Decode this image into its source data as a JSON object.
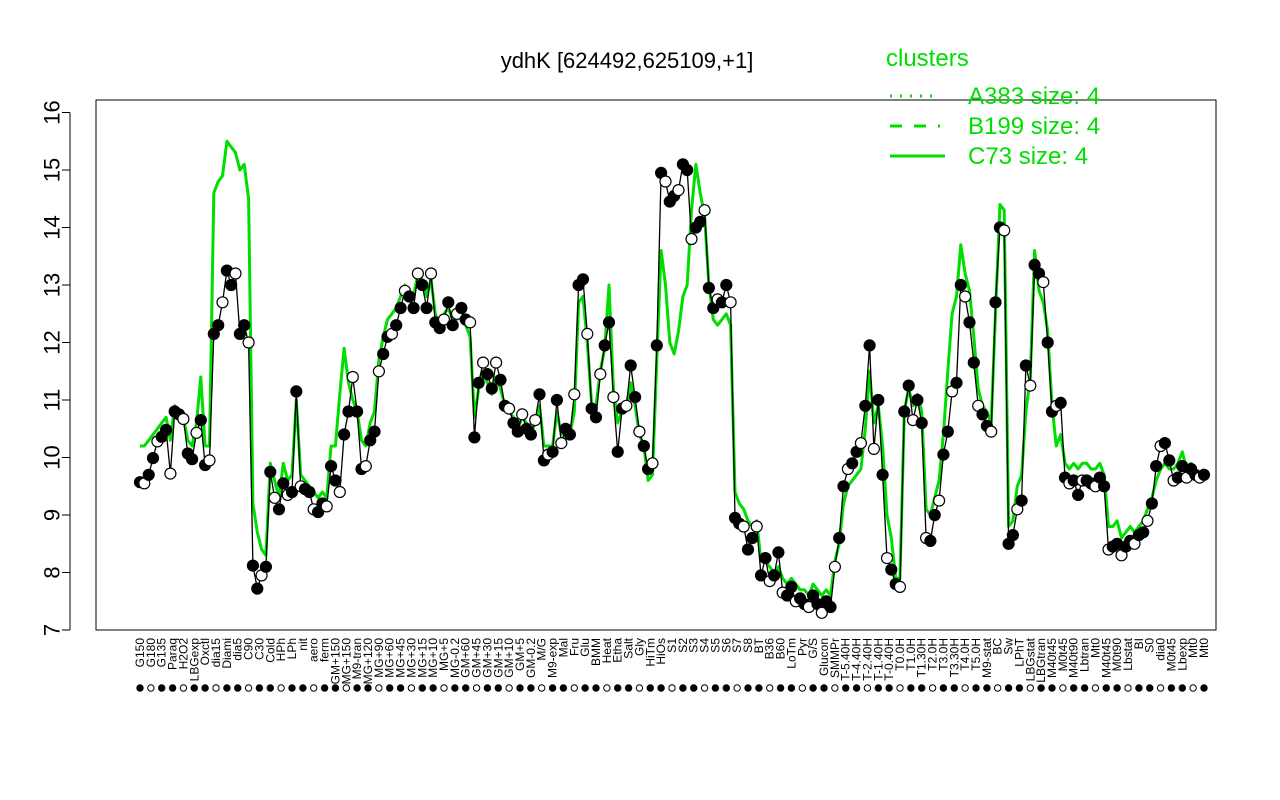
{
  "chart_data": {
    "type": "line",
    "title": "ydhK [624492,625109,+1]",
    "xlabel": "",
    "ylabel": "",
    "ylim": [
      7,
      16
    ],
    "yticks": [
      7,
      8,
      9,
      10,
      11,
      12,
      13,
      14,
      15,
      16
    ],
    "grid": false,
    "legend": {
      "placement": "top-right",
      "title": "clusters",
      "entries": [
        {
          "label": "A383 size: 4",
          "style": "dotted"
        },
        {
          "label": "B199 size: 4",
          "style": "dashed"
        },
        {
          "label": "C73 size: 4",
          "style": "solid"
        }
      ]
    },
    "colors": {
      "cluster": "#00dd00",
      "points": "#000000"
    },
    "x_tick_labels": [
      "G150",
      "G180",
      "G135",
      "Paraq",
      "H2O2",
      "LBGexp",
      "Oxctl",
      "dia15",
      "Diami",
      "dia5",
      "C90",
      "C30",
      "Cold",
      "HPh",
      "LPh",
      "nit",
      "aero",
      "ferm",
      "GM+150",
      "MG+150",
      "M9-tran",
      "MG+120",
      "MG+90",
      "MG+60",
      "MG+45",
      "MG+30",
      "MG+15",
      "MG+10",
      "MG+5",
      "MG-0.2",
      "GM+60",
      "GM+45",
      "GM+30",
      "GM+15",
      "GM+10",
      "GM+5",
      "GM-0.2",
      "M/G",
      "M9-exp",
      "Mal",
      "Fru",
      "Glu",
      "BMM",
      "Heat",
      "Etha",
      "Salt",
      "Gly",
      "HiTm",
      "HiOs",
      "S1",
      "S2",
      "S3",
      "S4",
      "S5",
      "S6",
      "S7",
      "S8",
      "BT",
      "B36",
      "B60",
      "LoTm",
      "Pyr",
      "G/S",
      "Glucon",
      "SMMPr",
      "T-5.40H",
      "T-4.40H",
      "T-2.40H",
      "T-1.40H",
      "T-0.40H",
      "T0.0H",
      "T1.0H",
      "T1.30H",
      "T2.0H",
      "T3.0H",
      "T3.30H",
      "T4.0H",
      "T5.0H",
      "M9-stat",
      "BC",
      "Sw",
      "LPhT",
      "LBGstat",
      "LBGtran",
      "M40t45",
      "M0t45",
      "M40t90",
      "Lbtran",
      "Mt0",
      "M40t45",
      "M0t90",
      "Lbstat",
      "BI",
      "S0",
      "dia0",
      "M0t45",
      "Lbexp",
      "Mt0",
      "Mt0"
    ],
    "series": [
      {
        "values": [
          9.57,
          9.55,
          9.7,
          9.99,
          10.28,
          10.36,
          10.48,
          9.72,
          10.8,
          10.75,
          10.67,
          10.07,
          9.97,
          10.43,
          10.65,
          9.87,
          9.95,
          12.15,
          12.3,
          12.7,
          13.25,
          13.0,
          13.2,
          12.15,
          12.3,
          12.0,
          8.12,
          7.72,
          7.95,
          8.1,
          9.75,
          9.3,
          9.1,
          9.55,
          9.35,
          9.4,
          11.15,
          9.5,
          9.45,
          9.4,
          9.1,
          9.05,
          9.2,
          9.15,
          9.85,
          9.6,
          9.4,
          10.4,
          10.8,
          11.4,
          10.8,
          9.8,
          9.85,
          10.3,
          10.45,
          11.5,
          11.8,
          12.1,
          12.15,
          12.3,
          12.6,
          12.9,
          12.8,
          12.6,
          13.2,
          13.0,
          12.6,
          13.2,
          12.35,
          12.25,
          12.4,
          12.7,
          12.3,
          12.5,
          12.6,
          12.4,
          12.35,
          10.35,
          11.3,
          11.65,
          11.45,
          11.2,
          11.65,
          11.35,
          10.9,
          10.85,
          10.6,
          10.45,
          10.75,
          10.5,
          10.4,
          10.65,
          11.1,
          9.95,
          10.05,
          10.1,
          11.0,
          10.25,
          10.5,
          10.4,
          11.1,
          13.0,
          13.1,
          12.15,
          10.85,
          10.7,
          11.45,
          11.95,
          12.35,
          11.05,
          10.1,
          10.85,
          10.9,
          11.6,
          11.05,
          10.45,
          10.2,
          9.8,
          9.9,
          11.95,
          14.95,
          14.8,
          14.45,
          14.55,
          14.65,
          15.1,
          15.0,
          13.8,
          14.0,
          14.1,
          14.3,
          12.95,
          12.6,
          12.75,
          12.7,
          13.0,
          12.7,
          8.95,
          8.85,
          8.8,
          8.4,
          8.6,
          8.8,
          7.95,
          8.25,
          7.85,
          7.95,
          8.35,
          7.65,
          7.6,
          7.75,
          7.5,
          7.55,
          7.45,
          7.4,
          7.6,
          7.45,
          7.3,
          7.5,
          7.4,
          8.1,
          8.6,
          9.5,
          9.8,
          9.9,
          10.1,
          10.25,
          10.9,
          11.95,
          10.15,
          11.0,
          9.7,
          8.25,
          8.05,
          7.8,
          7.75,
          10.8,
          11.25,
          10.65,
          11.0,
          10.6,
          8.6,
          8.55,
          9.0,
          9.25,
          10.05,
          10.45,
          11.15,
          11.3,
          13.0,
          12.8,
          12.35,
          11.65,
          10.9,
          10.75,
          10.55,
          10.45,
          12.7,
          14.0,
          13.95,
          8.5,
          8.65,
          9.1,
          9.25,
          11.6,
          11.25,
          13.35,
          13.2,
          13.05,
          12.0,
          10.8,
          10.9,
          10.95,
          9.65,
          9.55,
          9.6,
          9.35,
          9.6,
          9.6,
          9.55,
          9.5,
          9.65,
          9.5,
          8.4,
          8.45,
          8.5,
          8.3,
          8.45,
          8.55,
          8.5,
          8.65,
          8.7,
          8.9,
          9.2,
          9.85,
          10.2,
          10.25,
          9.95,
          9.6,
          9.65,
          9.85,
          9.65,
          9.8,
          9.7,
          9.65,
          9.7
        ]
      }
    ],
    "cluster_line": {
      "name": "C73 size: 4",
      "values": [
        10.2,
        10.2,
        10.3,
        10.4,
        10.5,
        10.6,
        10.7,
        10.3,
        10.9,
        10.8,
        10.7,
        10.3,
        10.2,
        10.6,
        11.4,
        10.2,
        10.2,
        14.6,
        14.8,
        14.9,
        15.5,
        15.4,
        15.3,
        15.0,
        15.1,
        14.5,
        9.2,
        8.7,
        8.4,
        8.3,
        9.9,
        9.6,
        9.3,
        9.9,
        9.6,
        9.7,
        11.0,
        9.7,
        9.6,
        9.5,
        9.4,
        9.3,
        9.4,
        9.3,
        10.2,
        10.2,
        11.1,
        11.9,
        11.3,
        11.0,
        10.8,
        10.3,
        10.2,
        10.6,
        10.8,
        11.7,
        12.1,
        12.4,
        12.5,
        12.6,
        12.8,
        13.0,
        12.9,
        12.8,
        13.2,
        13.1,
        12.8,
        13.1,
        12.5,
        12.3,
        12.5,
        12.6,
        12.4,
        12.4,
        12.5,
        12.3,
        12.1,
        10.7,
        11.2,
        11.5,
        11.3,
        11.1,
        11.4,
        11.2,
        10.9,
        10.8,
        10.7,
        10.5,
        10.7,
        10.6,
        10.4,
        10.6,
        10.9,
        10.2,
        10.2,
        10.2,
        10.8,
        10.4,
        10.5,
        10.4,
        10.8,
        12.7,
        12.8,
        12.0,
        10.9,
        10.9,
        11.5,
        11.9,
        13.0,
        11.2,
        10.6,
        10.8,
        10.9,
        11.3,
        10.9,
        10.4,
        10.2,
        9.6,
        9.7,
        11.7,
        13.6,
        13.0,
        12.0,
        11.8,
        12.2,
        12.8,
        13.0,
        14.3,
        15.1,
        14.6,
        14.2,
        13.0,
        12.4,
        12.3,
        12.4,
        12.5,
        12.3,
        9.4,
        9.2,
        9.1,
        8.9,
        8.8,
        8.9,
        8.2,
        8.2,
        8.1,
        8.0,
        8.1,
        7.9,
        7.8,
        7.9,
        7.8,
        7.7,
        7.7,
        7.6,
        7.8,
        7.7,
        7.6,
        7.7,
        7.6,
        8.2,
        8.5,
        9.2,
        9.5,
        9.6,
        9.7,
        9.8,
        10.5,
        11.5,
        10.6,
        10.9,
        10.2,
        9.0,
        8.6,
        7.9,
        7.9,
        10.8,
        11.2,
        10.9,
        11.1,
        10.8,
        9.1,
        9.0,
        9.3,
        9.6,
        10.4,
        11.5,
        12.5,
        12.8,
        13.7,
        13.2,
        12.9,
        12.1,
        11.2,
        10.9,
        10.8,
        10.6,
        12.5,
        14.4,
        14.3,
        8.8,
        8.9,
        9.5,
        9.7,
        10.8,
        11.4,
        13.6,
        12.9,
        12.7,
        12.2,
        10.9,
        10.2,
        10.4,
        9.9,
        9.8,
        9.9,
        9.8,
        9.9,
        9.9,
        9.8,
        9.8,
        9.9,
        9.7,
        8.8,
        8.8,
        8.9,
        8.6,
        8.7,
        8.8,
        8.7,
        8.8,
        8.9,
        9.1,
        9.3,
        9.6,
        9.8,
        9.9,
        9.8,
        9.8,
        9.9,
        10.1,
        9.8,
        9.9,
        9.8,
        9.7,
        9.8
      ]
    }
  }
}
